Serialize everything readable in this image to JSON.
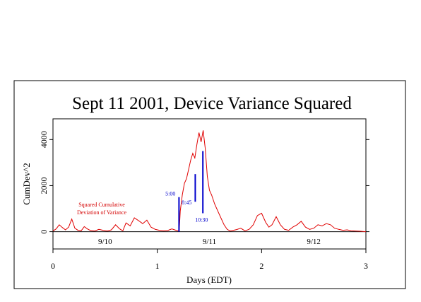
{
  "chart_data": {
    "type": "line",
    "title": "Sept 11 2001, Device Variance Squared",
    "xlabel": "Days (EDT)",
    "ylabel": "CumDev^2",
    "xlim": [
      0,
      3
    ],
    "ylim": [
      -750,
      4900
    ],
    "x_ticks": [
      "0",
      "1",
      "2",
      "3"
    ],
    "y_ticks": [
      "0",
      "2000",
      "4000"
    ],
    "day_labels": [
      {
        "text": "9/10",
        "x": 0.5
      },
      {
        "text": "9/11",
        "x": 1.5
      },
      {
        "text": "9/12",
        "x": 2.5
      }
    ],
    "line_color": "#e00000",
    "marker_color": "#0000cc",
    "series": [
      {
        "x": [
          0.0,
          0.03,
          0.06,
          0.09,
          0.12,
          0.15,
          0.18,
          0.21,
          0.24,
          0.27,
          0.3,
          0.33,
          0.36,
          0.4,
          0.44,
          0.48,
          0.52,
          0.56,
          0.6,
          0.64,
          0.67,
          0.7,
          0.74,
          0.78,
          0.82,
          0.86,
          0.9,
          0.94,
          0.98,
          1.02,
          1.06,
          1.1,
          1.14,
          1.18,
          1.21,
          1.22,
          1.24,
          1.26,
          1.28,
          1.3,
          1.32,
          1.34,
          1.36,
          1.38,
          1.4,
          1.42,
          1.44,
          1.46,
          1.48,
          1.5,
          1.52,
          1.55,
          1.58,
          1.61,
          1.64,
          1.67,
          1.7,
          1.73,
          1.76,
          1.8,
          1.84,
          1.88,
          1.92,
          1.96,
          2.0,
          2.04,
          2.07,
          2.1,
          2.14,
          2.18,
          2.22,
          2.26,
          2.3,
          2.34,
          2.38,
          2.42,
          2.46,
          2.5,
          2.54,
          2.58,
          2.62,
          2.66,
          2.7,
          2.74,
          2.78,
          2.82,
          2.86,
          2.9,
          2.94,
          2.97,
          3.0
        ],
        "y": [
          30,
          120,
          300,
          180,
          80,
          200,
          550,
          150,
          60,
          40,
          220,
          120,
          50,
          30,
          100,
          60,
          30,
          80,
          300,
          120,
          40,
          380,
          250,
          600,
          480,
          350,
          500,
          200,
          100,
          60,
          40,
          50,
          120,
          60,
          30,
          900,
          1600,
          2100,
          2300,
          2700,
          3100,
          3400,
          3200,
          3800,
          4300,
          3900,
          4400,
          3600,
          2400,
          1800,
          1600,
          1200,
          900,
          600,
          300,
          100,
          30,
          60,
          90,
          150,
          40,
          100,
          300,
          700,
          800,
          400,
          200,
          300,
          650,
          300,
          100,
          60,
          200,
          300,
          450,
          200,
          100,
          150,
          300,
          250,
          350,
          300,
          150,
          100,
          60,
          80,
          40,
          30,
          20,
          10,
          0
        ]
      }
    ],
    "markers": [
      {
        "label": "5:00",
        "x": 1.208,
        "y_from": 0,
        "y_to": 1500
      },
      {
        "label": "8:45",
        "x": 1.364,
        "y_from": 1300,
        "y_to": 2500
      },
      {
        "label": "10:30",
        "x": 1.437,
        "y_from": 800,
        "y_to": 3500
      }
    ],
    "annotations": [
      "Squared Cumulative",
      "Deviation of Variance"
    ]
  }
}
